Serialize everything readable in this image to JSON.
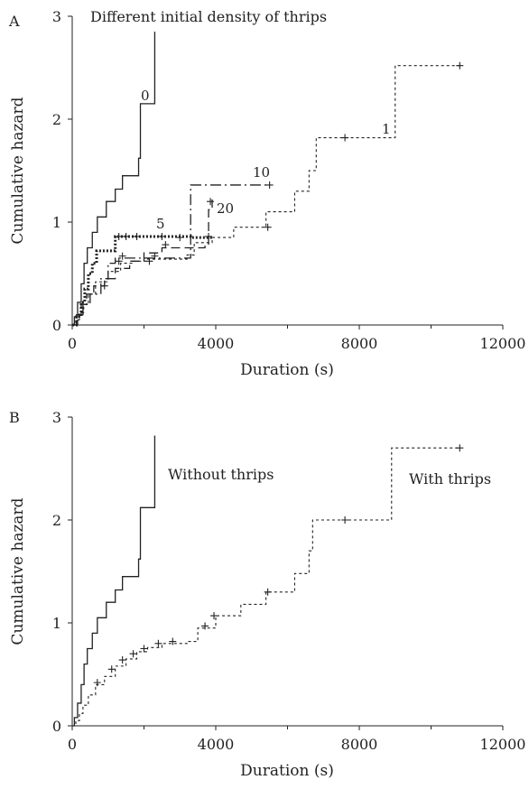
{
  "chart_data": [
    {
      "panel_label": "A",
      "type": "line",
      "line_shape": "step",
      "title": "Different initial density of thrips",
      "xlabel": "Duration (s)",
      "ylabel": "Cumulative hazard",
      "xlim": [
        0,
        12000
      ],
      "ylim": [
        0,
        3
      ],
      "x_ticks": [
        "0",
        "4000",
        "8000",
        "12000"
      ],
      "y_ticks": [
        "0",
        "1",
        "2",
        "3"
      ],
      "grid": false,
      "legend": "none (series labelled on curves)",
      "series": [
        {
          "name": "0",
          "style": "solid",
          "points": [
            [
              0,
              0
            ],
            [
              60,
              0.08
            ],
            [
              150,
              0.22
            ],
            [
              250,
              0.4
            ],
            [
              330,
              0.6
            ],
            [
              420,
              0.75
            ],
            [
              560,
              0.9
            ],
            [
              700,
              1.05
            ],
            [
              950,
              1.2
            ],
            [
              1200,
              1.32
            ],
            [
              1400,
              1.45
            ],
            [
              1850,
              1.62
            ],
            [
              1900,
              2.15
            ],
            [
              2300,
              2.85
            ]
          ],
          "censored": []
        },
        {
          "name": "1",
          "style": "dotted",
          "points": [
            [
              0,
              0
            ],
            [
              100,
              0.05
            ],
            [
              200,
              0.12
            ],
            [
              320,
              0.2
            ],
            [
              450,
              0.3
            ],
            [
              650,
              0.42
            ],
            [
              1000,
              0.52
            ],
            [
              1350,
              0.6
            ],
            [
              1700,
              0.62
            ],
            [
              2100,
              0.64
            ],
            [
              3200,
              0.68
            ],
            [
              3400,
              0.8
            ],
            [
              3900,
              0.85
            ],
            [
              4500,
              0.95
            ],
            [
              5400,
              1.1
            ],
            [
              6200,
              1.3
            ],
            [
              6600,
              1.5
            ],
            [
              6800,
              1.82
            ],
            [
              9000,
              2.52
            ],
            [
              10800,
              2.52
            ]
          ],
          "censored": [
            [
              2150,
              0.62
            ],
            [
              5450,
              0.95
            ],
            [
              7600,
              1.82
            ],
            [
              10800,
              2.52
            ]
          ]
        },
        {
          "name": "5",
          "style": "heavy-dotted",
          "points": [
            [
              0,
              0
            ],
            [
              120,
              0.08
            ],
            [
              250,
              0.22
            ],
            [
              350,
              0.35
            ],
            [
              450,
              0.5
            ],
            [
              560,
              0.6
            ],
            [
              680,
              0.72
            ],
            [
              1200,
              0.86
            ],
            [
              2000,
              0.86
            ],
            [
              3300,
              0.85
            ],
            [
              3700,
              0.85
            ],
            [
              3900,
              0.86
            ]
          ],
          "censored": [
            [
              1300,
              0.86
            ],
            [
              1500,
              0.86
            ],
            [
              1800,
              0.86
            ],
            [
              2500,
              0.86
            ],
            [
              3000,
              0.85
            ],
            [
              3800,
              0.86
            ]
          ]
        },
        {
          "name": "10",
          "style": "dash-dot",
          "points": [
            [
              0,
              0
            ],
            [
              150,
              0.1
            ],
            [
              300,
              0.2
            ],
            [
              500,
              0.3
            ],
            [
              800,
              0.45
            ],
            [
              1000,
              0.6
            ],
            [
              1200,
              0.65
            ],
            [
              2000,
              0.65
            ],
            [
              3300,
              0.7
            ],
            [
              3300,
              1.36
            ],
            [
              5500,
              1.36
            ]
          ],
          "censored": [
            [
              1400,
              0.67
            ],
            [
              2300,
              0.67
            ],
            [
              5500,
              1.36
            ]
          ]
        },
        {
          "name": "20",
          "style": "long-dash",
          "points": [
            [
              0,
              0
            ],
            [
              120,
              0.1
            ],
            [
              250,
              0.2
            ],
            [
              400,
              0.3
            ],
            [
              600,
              0.38
            ],
            [
              900,
              0.45
            ],
            [
              1200,
              0.55
            ],
            [
              1600,
              0.62
            ],
            [
              2000,
              0.7
            ],
            [
              2500,
              0.75
            ],
            [
              3700,
              0.78
            ],
            [
              3800,
              1.12
            ],
            [
              3900,
              1.22
            ]
          ],
          "censored": [
            [
              900,
              0.38
            ],
            [
              1300,
              0.62
            ],
            [
              2600,
              0.78
            ],
            [
              3850,
              1.2
            ]
          ]
        }
      ],
      "curve_labels": [
        "0",
        "1",
        "5",
        "10",
        "20"
      ]
    },
    {
      "panel_label": "B",
      "type": "line",
      "line_shape": "step",
      "title": "",
      "xlabel": "Duration (s)",
      "ylabel": "Cumulative hazard",
      "xlim": [
        0,
        12000
      ],
      "ylim": [
        0,
        3
      ],
      "x_ticks": [
        "0",
        "4000",
        "8000",
        "12000"
      ],
      "y_ticks": [
        "0",
        "1",
        "2",
        "3"
      ],
      "grid": false,
      "legend": "none (series labelled on curves)",
      "series": [
        {
          "name": "Without thrips",
          "style": "solid",
          "points": [
            [
              0,
              0
            ],
            [
              60,
              0.08
            ],
            [
              150,
              0.22
            ],
            [
              250,
              0.4
            ],
            [
              330,
              0.6
            ],
            [
              420,
              0.75
            ],
            [
              560,
              0.9
            ],
            [
              700,
              1.05
            ],
            [
              950,
              1.2
            ],
            [
              1200,
              1.32
            ],
            [
              1400,
              1.45
            ],
            [
              1850,
              1.62
            ],
            [
              1900,
              2.12
            ],
            [
              2300,
              2.82
            ]
          ],
          "censored": []
        },
        {
          "name": "With thrips",
          "style": "dotted",
          "points": [
            [
              0,
              0
            ],
            [
              100,
              0.05
            ],
            [
              200,
              0.12
            ],
            [
              300,
              0.2
            ],
            [
              450,
              0.3
            ],
            [
              650,
              0.4
            ],
            [
              900,
              0.48
            ],
            [
              1200,
              0.58
            ],
            [
              1500,
              0.65
            ],
            [
              1800,
              0.72
            ],
            [
              2100,
              0.76
            ],
            [
              2500,
              0.8
            ],
            [
              3200,
              0.82
            ],
            [
              3500,
              0.95
            ],
            [
              4000,
              1.07
            ],
            [
              4700,
              1.18
            ],
            [
              5400,
              1.3
            ],
            [
              6200,
              1.48
            ],
            [
              6600,
              1.7
            ],
            [
              6700,
              2.0
            ],
            [
              8900,
              2.7
            ],
            [
              10800,
              2.7
            ]
          ],
          "censored": [
            [
              700,
              0.42
            ],
            [
              1100,
              0.55
            ],
            [
              1400,
              0.64
            ],
            [
              1700,
              0.7
            ],
            [
              2000,
              0.75
            ],
            [
              2400,
              0.8
            ],
            [
              2800,
              0.82
            ],
            [
              3700,
              0.97
            ],
            [
              3950,
              1.07
            ],
            [
              5450,
              1.3
            ],
            [
              7600,
              2.0
            ],
            [
              10800,
              2.7
            ]
          ]
        }
      ],
      "curve_labels": [
        "Without thrips",
        "With thrips"
      ]
    }
  ]
}
